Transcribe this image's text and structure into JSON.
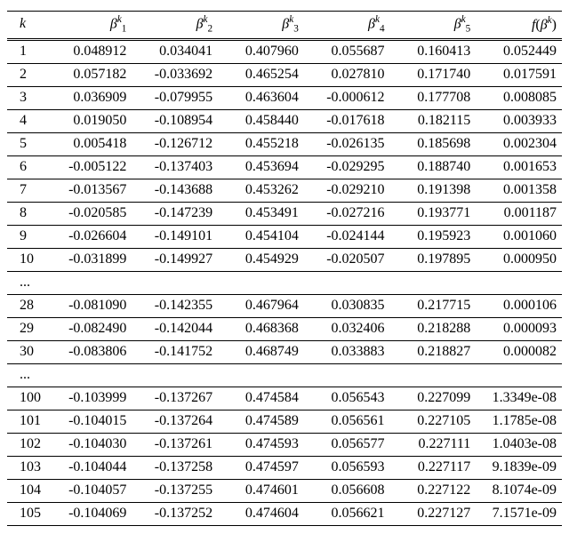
{
  "table": {
    "type": "table",
    "background_color": "#ffffff",
    "text_color": "#000000",
    "rule_color": "#000000",
    "font_family": "Times New Roman",
    "font_size_pt": 12,
    "header_font_size_pt": 12,
    "column_alignments": [
      "left",
      "right",
      "right",
      "right",
      "right",
      "right",
      "right"
    ],
    "column_widths_pct": [
      7,
      15.5,
      15.5,
      15.5,
      15.5,
      15.5,
      15.5
    ],
    "columns": [
      {
        "key": "k",
        "label_html": "<span class=\"mi\">k</span>"
      },
      {
        "key": "b1",
        "label_html": "<span class=\"mi\">β</span><span class=\"sup\">k</span><span class=\"sub\">1</span>"
      },
      {
        "key": "b2",
        "label_html": "<span class=\"mi\">β</span><span class=\"sup\">k</span><span class=\"sub\">2</span>"
      },
      {
        "key": "b3",
        "label_html": "<span class=\"mi\">β</span><span class=\"sup\">k</span><span class=\"sub\">3</span>"
      },
      {
        "key": "b4",
        "label_html": "<span class=\"mi\">β</span><span class=\"sup\">k</span><span class=\"sub\">4</span>"
      },
      {
        "key": "b5",
        "label_html": "<span class=\"mi\">β</span><span class=\"sup\">k</span><span class=\"sub\">5</span>"
      },
      {
        "key": "f",
        "label_html": "<span class=\"mi\">f</span>(<span class=\"mi\">β</span><span class=\"sup\">k</span>)"
      }
    ],
    "rows": [
      {
        "k": "1",
        "b1": "0.048912",
        "b2": "0.034041",
        "b3": "0.407960",
        "b4": "0.055687",
        "b5": "0.160413",
        "f": "0.052449"
      },
      {
        "k": "2",
        "b1": "0.057182",
        "b2": "-0.033692",
        "b3": "0.465254",
        "b4": "0.027810",
        "b5": "0.171740",
        "f": "0.017591"
      },
      {
        "k": "3",
        "b1": "0.036909",
        "b2": "-0.079955",
        "b3": "0.463604",
        "b4": "-0.000612",
        "b5": "0.177708",
        "f": "0.008085"
      },
      {
        "k": "4",
        "b1": "0.019050",
        "b2": "-0.108954",
        "b3": "0.458440",
        "b4": "-0.017618",
        "b5": "0.182115",
        "f": "0.003933"
      },
      {
        "k": "5",
        "b1": "0.005418",
        "b2": "-0.126712",
        "b3": "0.455218",
        "b4": "-0.026135",
        "b5": "0.185698",
        "f": "0.002304"
      },
      {
        "k": "6",
        "b1": "-0.005122",
        "b2": "-0.137403",
        "b3": "0.453694",
        "b4": "-0.029295",
        "b5": "0.188740",
        "f": "0.001653"
      },
      {
        "k": "7",
        "b1": "-0.013567",
        "b2": "-0.143688",
        "b3": "0.453262",
        "b4": "-0.029210",
        "b5": "0.191398",
        "f": "0.001358"
      },
      {
        "k": "8",
        "b1": "-0.020585",
        "b2": "-0.147239",
        "b3": "0.453491",
        "b4": "-0.027216",
        "b5": "0.193771",
        "f": "0.001187"
      },
      {
        "k": "9",
        "b1": "-0.026604",
        "b2": "-0.149101",
        "b3": "0.454104",
        "b4": "-0.024144",
        "b5": "0.195923",
        "f": "0.001060"
      },
      {
        "k": "10",
        "b1": "-0.031899",
        "b2": "-0.149927",
        "b3": "0.454929",
        "b4": "-0.020507",
        "b5": "0.197895",
        "f": "0.000950"
      },
      {
        "ellipsis": "..."
      },
      {
        "k": "28",
        "b1": "-0.081090",
        "b2": "-0.142355",
        "b3": "0.467964",
        "b4": "0.030835",
        "b5": "0.217715",
        "f": "0.000106"
      },
      {
        "k": "29",
        "b1": "-0.082490",
        "b2": "-0.142044",
        "b3": "0.468368",
        "b4": "0.032406",
        "b5": "0.218288",
        "f": "0.000093"
      },
      {
        "k": "30",
        "b1": "-0.083806",
        "b2": "-0.141752",
        "b3": "0.468749",
        "b4": "0.033883",
        "b5": "0.218827",
        "f": "0.000082"
      },
      {
        "ellipsis": "..."
      },
      {
        "k": "100",
        "b1": "-0.103999",
        "b2": "-0.137267",
        "b3": "0.474584",
        "b4": "0.056543",
        "b5": "0.227099",
        "f": "1.3349e-08"
      },
      {
        "k": "101",
        "b1": "-0.104015",
        "b2": "-0.137264",
        "b3": "0.474589",
        "b4": "0.056561",
        "b5": "0.227105",
        "f": "1.1785e-08"
      },
      {
        "k": "102",
        "b1": "-0.104030",
        "b2": "-0.137261",
        "b3": "0.474593",
        "b4": "0.056577",
        "b5": "0.227111",
        "f": "1.0403e-08"
      },
      {
        "k": "103",
        "b1": "-0.104044",
        "b2": "-0.137258",
        "b3": "0.474597",
        "b4": "0.056593",
        "b5": "0.227117",
        "f": "9.1839e-09"
      },
      {
        "k": "104",
        "b1": "-0.104057",
        "b2": "-0.137255",
        "b3": "0.474601",
        "b4": "0.056608",
        "b5": "0.227122",
        "f": "8.1074e-09"
      },
      {
        "k": "105",
        "b1": "-0.104069",
        "b2": "-0.137252",
        "b3": "0.474604",
        "b4": "0.056621",
        "b5": "0.227127",
        "f": "7.1571e-09"
      }
    ]
  }
}
